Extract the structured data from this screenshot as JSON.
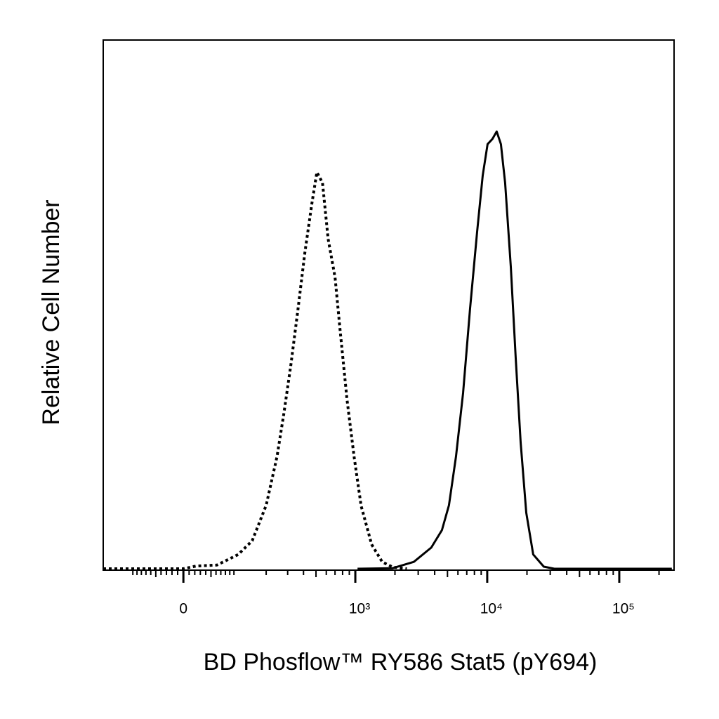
{
  "chart_data": {
    "type": "line",
    "xlabel": "BD Phosflow™ RY586 Stat5 (pY694)",
    "ylabel": "Relative Cell Number",
    "xscale": "biexponential",
    "xlim": [
      -190,
      260000
    ],
    "xticks": [
      0,
      {
        "value": 1000,
        "label": "10³"
      },
      {
        "value": 10000,
        "label": "10⁴"
      },
      {
        "value": 100000,
        "label": "10⁵"
      }
    ],
    "ylim": [
      0,
      100
    ],
    "series": [
      {
        "color": "#000000",
        "dash": "dotted",
        "x": [
          -190,
          0,
          22,
          62,
          111,
          151,
          200,
          246,
          279,
          318,
          362,
          410,
          465,
          508,
          561,
          620,
          701,
          765,
          865,
          979,
          1107,
          1330,
          1600,
          1920,
          2460
        ],
        "values": [
          0,
          0,
          0.5,
          0.7,
          2.7,
          5.3,
          12,
          21.2,
          29.2,
          38.5,
          49.1,
          59.8,
          69.1,
          75,
          73,
          62.4,
          55.1,
          45.2,
          31.9,
          21.2,
          11.9,
          4.6,
          1.3,
          0.3,
          0
        ]
      },
      {
        "color": "#000000",
        "dash": "solid",
        "x": [
          1040,
          1920,
          2780,
          3770,
          4540,
          5130,
          5800,
          6560,
          7410,
          8380,
          9240,
          10060,
          10960,
          11800,
          12700,
          13670,
          15080,
          16430,
          17900,
          19750,
          22300,
          26800,
          32200,
          250000
        ],
        "values": [
          0,
          0.1,
          1.3,
          4,
          7.3,
          12,
          21.2,
          33.2,
          49.1,
          63.7,
          74.4,
          80.3,
          81.3,
          82.7,
          80.3,
          73,
          57.1,
          39.8,
          23.9,
          10.6,
          2.7,
          0.4,
          0,
          0
        ]
      }
    ]
  }
}
